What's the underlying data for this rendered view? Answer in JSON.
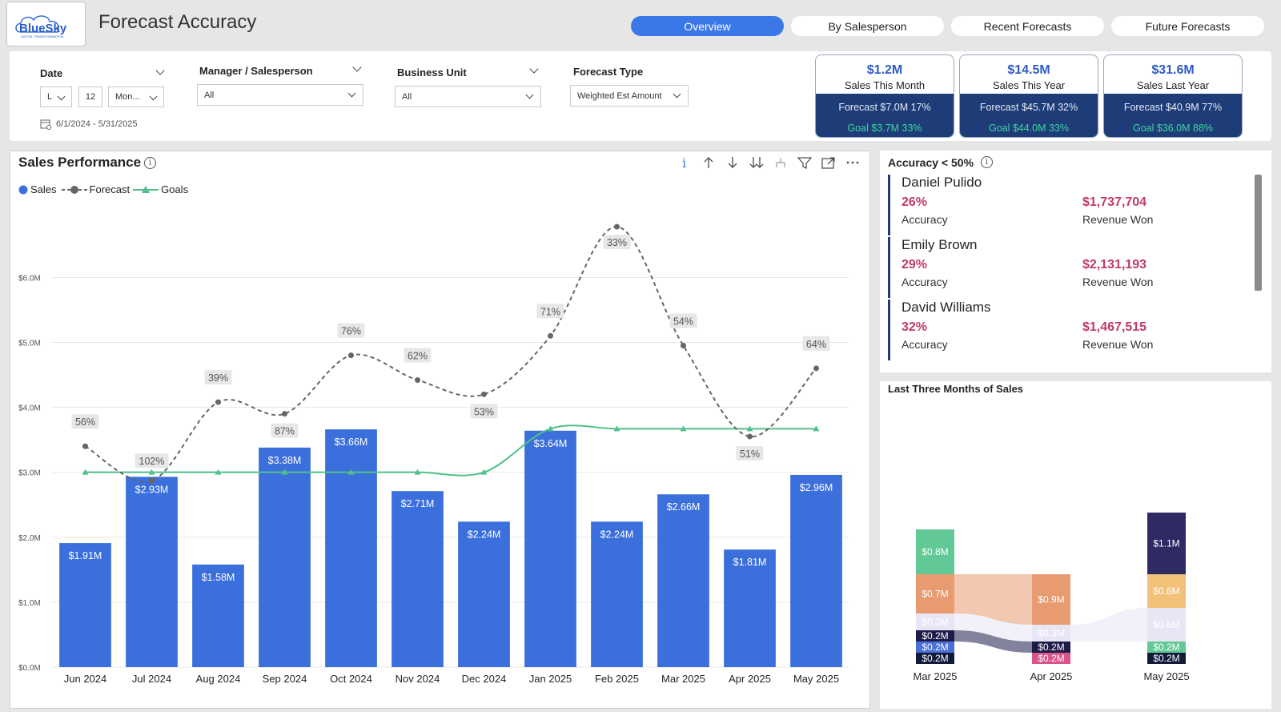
{
  "header": {
    "logo_text": "BlueSky",
    "logo_tagline": "DIGITAL TRANSFORMATION",
    "title": "Forecast Accuracy",
    "tabs": [
      {
        "label": "Overview",
        "active": true
      },
      {
        "label": "By Salesperson",
        "active": false
      },
      {
        "label": "Recent Forecasts",
        "active": false
      },
      {
        "label": "Future Forecasts",
        "active": false
      }
    ]
  },
  "filters": {
    "date": {
      "label": "Date",
      "relative_value": "L",
      "count_value": "12",
      "unit_value": "Mon...",
      "range": "6/1/2024 - 5/31/2025"
    },
    "manager": {
      "label": "Manager / Salesperson",
      "value": "All"
    },
    "business_unit": {
      "label": "Business Unit",
      "value": "All"
    },
    "forecast_type": {
      "label": "Forecast Type",
      "value": "Weighted Est Amount"
    }
  },
  "kpis": [
    {
      "value": "$1.2M",
      "label": "Sales This Month",
      "forecast": "Forecast $7.0M 17%",
      "goal": "Goal $3.7M 33%"
    },
    {
      "value": "$14.5M",
      "label": "Sales This Year",
      "forecast": "Forecast $45.7M 32%",
      "goal": "Goal $44.0M 33%"
    },
    {
      "value": "$31.6M",
      "label": "Sales Last Year",
      "forecast": "Forecast $40.9M 77%",
      "goal": "Goal $36.0M 88%"
    }
  ],
  "sales_performance": {
    "title": "Sales Performance",
    "legend": [
      "Sales",
      "Forecast",
      "Goals"
    ],
    "toolbar": [
      "info-icon",
      "drill-up-icon",
      "drill-down-icon",
      "expand-all-icon",
      "hierarchy-icon",
      "filter-icon",
      "focus-mode-icon",
      "more-options-icon"
    ]
  },
  "chart_data": {
    "type": "bar",
    "categories": [
      "Jun 2024",
      "Jul 2024",
      "Aug 2024",
      "Sep 2024",
      "Oct 2024",
      "Nov 2024",
      "Dec 2024",
      "Jan 2025",
      "Feb 2025",
      "Mar 2025",
      "Apr 2025",
      "May 2025"
    ],
    "series": [
      {
        "name": "Sales",
        "type": "bar",
        "values": [
          1.91,
          2.93,
          1.58,
          3.38,
          3.66,
          2.71,
          2.24,
          3.64,
          2.24,
          2.66,
          1.81,
          2.96
        ],
        "labels": [
          "$1.91M",
          "$2.93M",
          "$1.58M",
          "$3.38M",
          "$3.66M",
          "$2.71M",
          "$2.24M",
          "$3.64M",
          "$2.24M",
          "$2.66M",
          "$1.81M",
          "$2.96M"
        ],
        "color": "#3b6fdc"
      },
      {
        "name": "Forecast",
        "type": "line",
        "values": [
          3.4,
          2.87,
          4.08,
          3.9,
          4.8,
          4.42,
          4.2,
          5.1,
          6.78,
          4.95,
          3.55,
          4.6
        ],
        "labels": [
          "56%",
          "102%",
          "39%",
          "87%",
          "76%",
          "62%",
          "53%",
          "71%",
          "33%",
          "54%",
          "51%",
          "64%"
        ],
        "color": "#666666"
      },
      {
        "name": "Goals",
        "type": "line",
        "values": [
          3.0,
          3.0,
          3.0,
          3.0,
          3.0,
          3.0,
          3.0,
          3.67,
          3.67,
          3.67,
          3.67,
          3.67
        ],
        "color": "#4fc18b"
      }
    ],
    "yticks": [
      "$0.0M",
      "$1.0M",
      "$2.0M",
      "$3.0M",
      "$4.0M",
      "$5.0M",
      "$6.0M"
    ],
    "ylim": [
      0,
      7.2
    ]
  },
  "accuracy": {
    "title": "Accuracy < 50%",
    "accuracy_label": "Accuracy",
    "revenue_label": "Revenue Won",
    "items": [
      {
        "name": "Daniel Pulido",
        "accuracy": "26%",
        "revenue": "$1,737,704"
      },
      {
        "name": "Emily Brown",
        "accuracy": "29%",
        "revenue": "$2,131,193"
      },
      {
        "name": "David Williams",
        "accuracy": "32%",
        "revenue": "$1,467,515"
      }
    ]
  },
  "last_three_months": {
    "title": "Last Three Months of Sales",
    "months": [
      "Mar 2025",
      "Apr 2025",
      "May 2025"
    ],
    "colors": [
      "#62c996",
      "#e89a70",
      "#e8e6f4",
      "#1e1b4b",
      "#4a6fd8",
      "#121a3a",
      "#d8548a",
      "#f2c27a",
      "#2f2a63"
    ],
    "segments": {
      "Mar 2025": [
        {
          "label": "$0.8M",
          "value": 0.8,
          "color": "#62c996"
        },
        {
          "label": "$0.7M",
          "value": 0.7,
          "color": "#e89a70"
        },
        {
          "label": "$0.3M",
          "value": 0.3,
          "color": "#e8e6f4"
        },
        {
          "label": "$0.2M",
          "value": 0.2,
          "color": "#1e1b4b"
        },
        {
          "label": "$0.2M",
          "value": 0.2,
          "color": "#4a6fd8"
        },
        {
          "label": "$0.2M",
          "value": 0.2,
          "color": "#121a3a"
        }
      ],
      "Apr 2025": [
        {
          "label": "$0.9M",
          "value": 0.9,
          "color": "#e89a70"
        },
        {
          "label": "$0.3M",
          "value": 0.3,
          "color": "#e8e6f4"
        },
        {
          "label": "$0.2M",
          "value": 0.2,
          "color": "#1e1b4b"
        },
        {
          "label": "$0.2M",
          "value": 0.2,
          "color": "#d8548a"
        }
      ],
      "May 2025": [
        {
          "label": "$1.1M",
          "value": 1.1,
          "color": "#2f2a63"
        },
        {
          "label": "$0.6M",
          "value": 0.6,
          "color": "#f2c27a"
        },
        {
          "label": "$0.6M",
          "value": 0.6,
          "color": "#e8e6f4"
        },
        {
          "label": "$0.2M",
          "value": 0.2,
          "color": "#62c996"
        },
        {
          "label": "$0.2M",
          "value": 0.2,
          "color": "#121a3a"
        }
      ]
    }
  }
}
